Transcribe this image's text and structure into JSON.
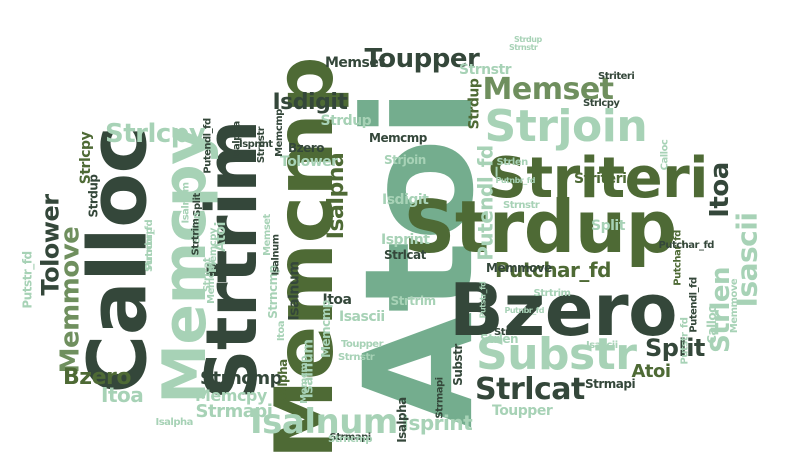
{
  "colors": {
    "dark": "#34473a",
    "olive": "#4e6a35",
    "mid": "#6f8f5e",
    "green": "#74ad8e",
    "pale": "#a7d2b6",
    "faint": "#c6e3d0"
  },
  "words": [
    {
      "text": "Atoi",
      "color": "green"
    },
    {
      "text": "Strdup",
      "color": "olive"
    },
    {
      "text": "Bzero",
      "color": "dark"
    },
    {
      "text": "Striteri",
      "color": "olive"
    },
    {
      "text": "Calloc",
      "color": "dark"
    },
    {
      "text": "Memcmp",
      "color": "olive"
    },
    {
      "text": "Strtrim",
      "color": "dark"
    },
    {
      "text": "Memcpy",
      "color": "pale"
    },
    {
      "text": "Substr",
      "color": "pale"
    },
    {
      "text": "Strjoin",
      "color": "pale"
    },
    {
      "text": "Memset",
      "color": "mid"
    },
    {
      "text": "Isalnum",
      "color": "pale"
    },
    {
      "text": "Strlcat",
      "color": "dark"
    },
    {
      "text": "Strlcpy",
      "color": "pale"
    },
    {
      "text": "Memmove",
      "color": "mid"
    },
    {
      "text": "Tolower",
      "color": "dark"
    },
    {
      "text": "Toupper",
      "color": "dark"
    },
    {
      "text": "Isdigit",
      "color": "dark"
    },
    {
      "text": "Isascii",
      "color": "pale"
    },
    {
      "text": "Itoa",
      "color": "dark"
    },
    {
      "text": "Split",
      "color": "dark"
    },
    {
      "text": "Strlen",
      "color": "pale"
    },
    {
      "text": "Isalpha",
      "color": "olive"
    },
    {
      "text": "Putchar_fd",
      "color": "olive"
    },
    {
      "text": "Putendl_fd",
      "color": "pale"
    },
    {
      "text": "Bzero",
      "color": "olive"
    },
    {
      "text": "Itoa",
      "color": "pale"
    },
    {
      "text": "Strncmp",
      "color": "dark"
    },
    {
      "text": "Strmapi",
      "color": "pale"
    },
    {
      "text": "Isprint",
      "color": "pale"
    },
    {
      "text": "Memcpy",
      "color": "pale"
    },
    {
      "text": "Atoi",
      "color": "olive"
    },
    {
      "text": "Strdup",
      "color": "olive"
    },
    {
      "text": "Strnstr",
      "color": "pale"
    },
    {
      "text": "Memset",
      "color": "dark"
    },
    {
      "text": "Striteri",
      "color": "olive"
    },
    {
      "text": "Strlcpy",
      "color": "dark"
    },
    {
      "text": "Split",
      "color": "pale"
    },
    {
      "text": "Strjoin",
      "color": "pale"
    },
    {
      "text": "Isdigit",
      "color": "pale"
    },
    {
      "text": "Isprint",
      "color": "pale"
    },
    {
      "text": "Strlcat",
      "color": "dark"
    },
    {
      "text": "Memcmp",
      "color": "dark"
    },
    {
      "text": "Bzero",
      "color": "dark"
    },
    {
      "text": "Strdup",
      "color": "pale"
    },
    {
      "text": "Strtrim",
      "color": "pale"
    },
    {
      "text": "Memmove",
      "color": "dark"
    },
    {
      "text": "Isalnum",
      "color": "pale"
    },
    {
      "text": "Isascii",
      "color": "pale"
    },
    {
      "text": "Itoa",
      "color": "dark"
    },
    {
      "text": "Strmapi",
      "color": "dark"
    },
    {
      "text": "Toupper",
      "color": "pale"
    },
    {
      "text": "Substr",
      "color": "dark"
    },
    {
      "text": "Strlen",
      "color": "pale"
    },
    {
      "text": "Calloc",
      "color": "pale"
    },
    {
      "text": "Isalpha",
      "color": "olive"
    },
    {
      "text": "Atoi",
      "color": "pale"
    },
    {
      "text": "Memcmp",
      "color": "pale"
    },
    {
      "text": "Strlcpy",
      "color": "olive"
    },
    {
      "text": "Strdup",
      "color": "dark"
    },
    {
      "text": "Tolower",
      "color": "pale"
    },
    {
      "text": "Isalnum",
      "color": "dark"
    },
    {
      "text": "Striteri",
      "color": "dark"
    },
    {
      "text": "Strncmp",
      "color": "pale"
    },
    {
      "text": "Memset",
      "color": "pale"
    },
    {
      "text": "Putendl_fd",
      "color": "dark"
    },
    {
      "text": "Putnbr_fd",
      "color": "pale"
    },
    {
      "text": "Putstr_fd",
      "color": "pale"
    },
    {
      "text": "Putchar_fd",
      "color": "olive"
    },
    {
      "text": "Strnstr",
      "color": "pale"
    },
    {
      "text": "Strtrim",
      "color": "pale"
    },
    {
      "text": "Strlcat",
      "color": "dark"
    },
    {
      "text": "Isalpha",
      "color": "dark"
    },
    {
      "text": "Calloc",
      "color": "pale"
    },
    {
      "text": "Strlen",
      "color": "pale"
    },
    {
      "text": "Memcpy",
      "color": "pale"
    },
    {
      "text": "Putstr_fd",
      "color": "pale"
    },
    {
      "text": "Putnbr_fd",
      "color": "pale"
    },
    {
      "text": "Putendl_fd",
      "color": "dark"
    },
    {
      "text": "Memmove",
      "color": "pale"
    },
    {
      "text": "Putchar_fd",
      "color": "dark"
    },
    {
      "text": "Strnstr",
      "color": "pale"
    },
    {
      "text": "Putstr_fd",
      "color": "pale"
    },
    {
      "text": "Putnbr_fd",
      "color": "pale"
    },
    {
      "text": "Isalpha",
      "color": "dark"
    },
    {
      "text": "Toupper",
      "color": "pale"
    },
    {
      "text": "Strnstr",
      "color": "pale"
    },
    {
      "text": "Strdup",
      "color": "pale"
    },
    {
      "text": "Isascii",
      "color": "pale"
    },
    {
      "text": "Isprint",
      "color": "dark"
    },
    {
      "text": "Strnstr",
      "color": "dark"
    },
    {
      "text": "Split",
      "color": "dark"
    },
    {
      "text": "Memcmp",
      "color": "dark"
    },
    {
      "text": "Isalnum",
      "color": "pale"
    },
    {
      "text": "Strlen",
      "color": "pale"
    },
    {
      "text": "Itoa",
      "color": "pale"
    },
    {
      "text": "Strmapi",
      "color": "dark"
    },
    {
      "text": "Strtrim",
      "color": "dark"
    },
    {
      "text": "Memcmp",
      "color": "pale"
    },
    {
      "text": "Isalpha",
      "color": "pale"
    },
    {
      "text": "Strncmp",
      "color": "pale"
    },
    {
      "text": "Isalnum",
      "color": "dark"
    },
    {
      "text": "Strlcat",
      "color": "pale"
    },
    {
      "text": "Memcpy",
      "color": "pale"
    },
    {
      "text": "Strmapi",
      "color": "dark"
    },
    {
      "text": "Strncmp",
      "color": "pale"
    }
  ]
}
